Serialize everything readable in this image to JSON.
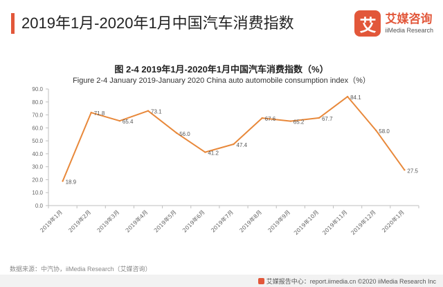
{
  "page_title": "2019年1月-2020年1月中国汽车消费指数",
  "logo": {
    "mark": "艾",
    "cn": "艾媒咨询",
    "en": "iiMedia Research"
  },
  "colors": {
    "accent": "#e2573a",
    "line": "#e8883a",
    "axis": "#bfbfbf",
    "tick_label": "#666666"
  },
  "chart_data": {
    "type": "line",
    "title": "图 2-4 2019年1月-2020年1月中国汽车消费指数（%）",
    "subtitle": "Figure 2-4 January 2019-January 2020 China auto automobile consumption index（%）",
    "categories": [
      "2019年1月",
      "2019年2月",
      "2019年3月",
      "2019年4月",
      "2019年5月",
      "2019年6月",
      "2019年7月",
      "2019年8月",
      "2019年9月",
      "2019年10月",
      "2019年11月",
      "2019年12月",
      "2020年1月"
    ],
    "series": [
      {
        "values": [
          18.9,
          71.8,
          65.4,
          73.1,
          56.0,
          41.2,
          47.4,
          67.6,
          65.2,
          67.7,
          84.1,
          58.0,
          27.5
        ]
      }
    ],
    "data_labels": [
      "18.9",
      "71.8",
      "65.4",
      "73.1",
      "56.0",
      "41.2",
      "47.4",
      "67.6",
      "65.2",
      "67.7",
      "84.1",
      "58.0",
      "27.5"
    ],
    "y_ticks": [
      "0.0",
      "10.0",
      "20.0",
      "30.0",
      "40.0",
      "50.0",
      "60.0",
      "70.0",
      "80.0",
      "90.0"
    ],
    "ylim": [
      0,
      90
    ],
    "grid": false,
    "legend": "none"
  },
  "source": "数据来源：中汽协，iiMedia Research（艾媒咨询）",
  "footer": "艾媒报告中心：report.iimedia.cn ©2020  iiMedia Research Inc"
}
